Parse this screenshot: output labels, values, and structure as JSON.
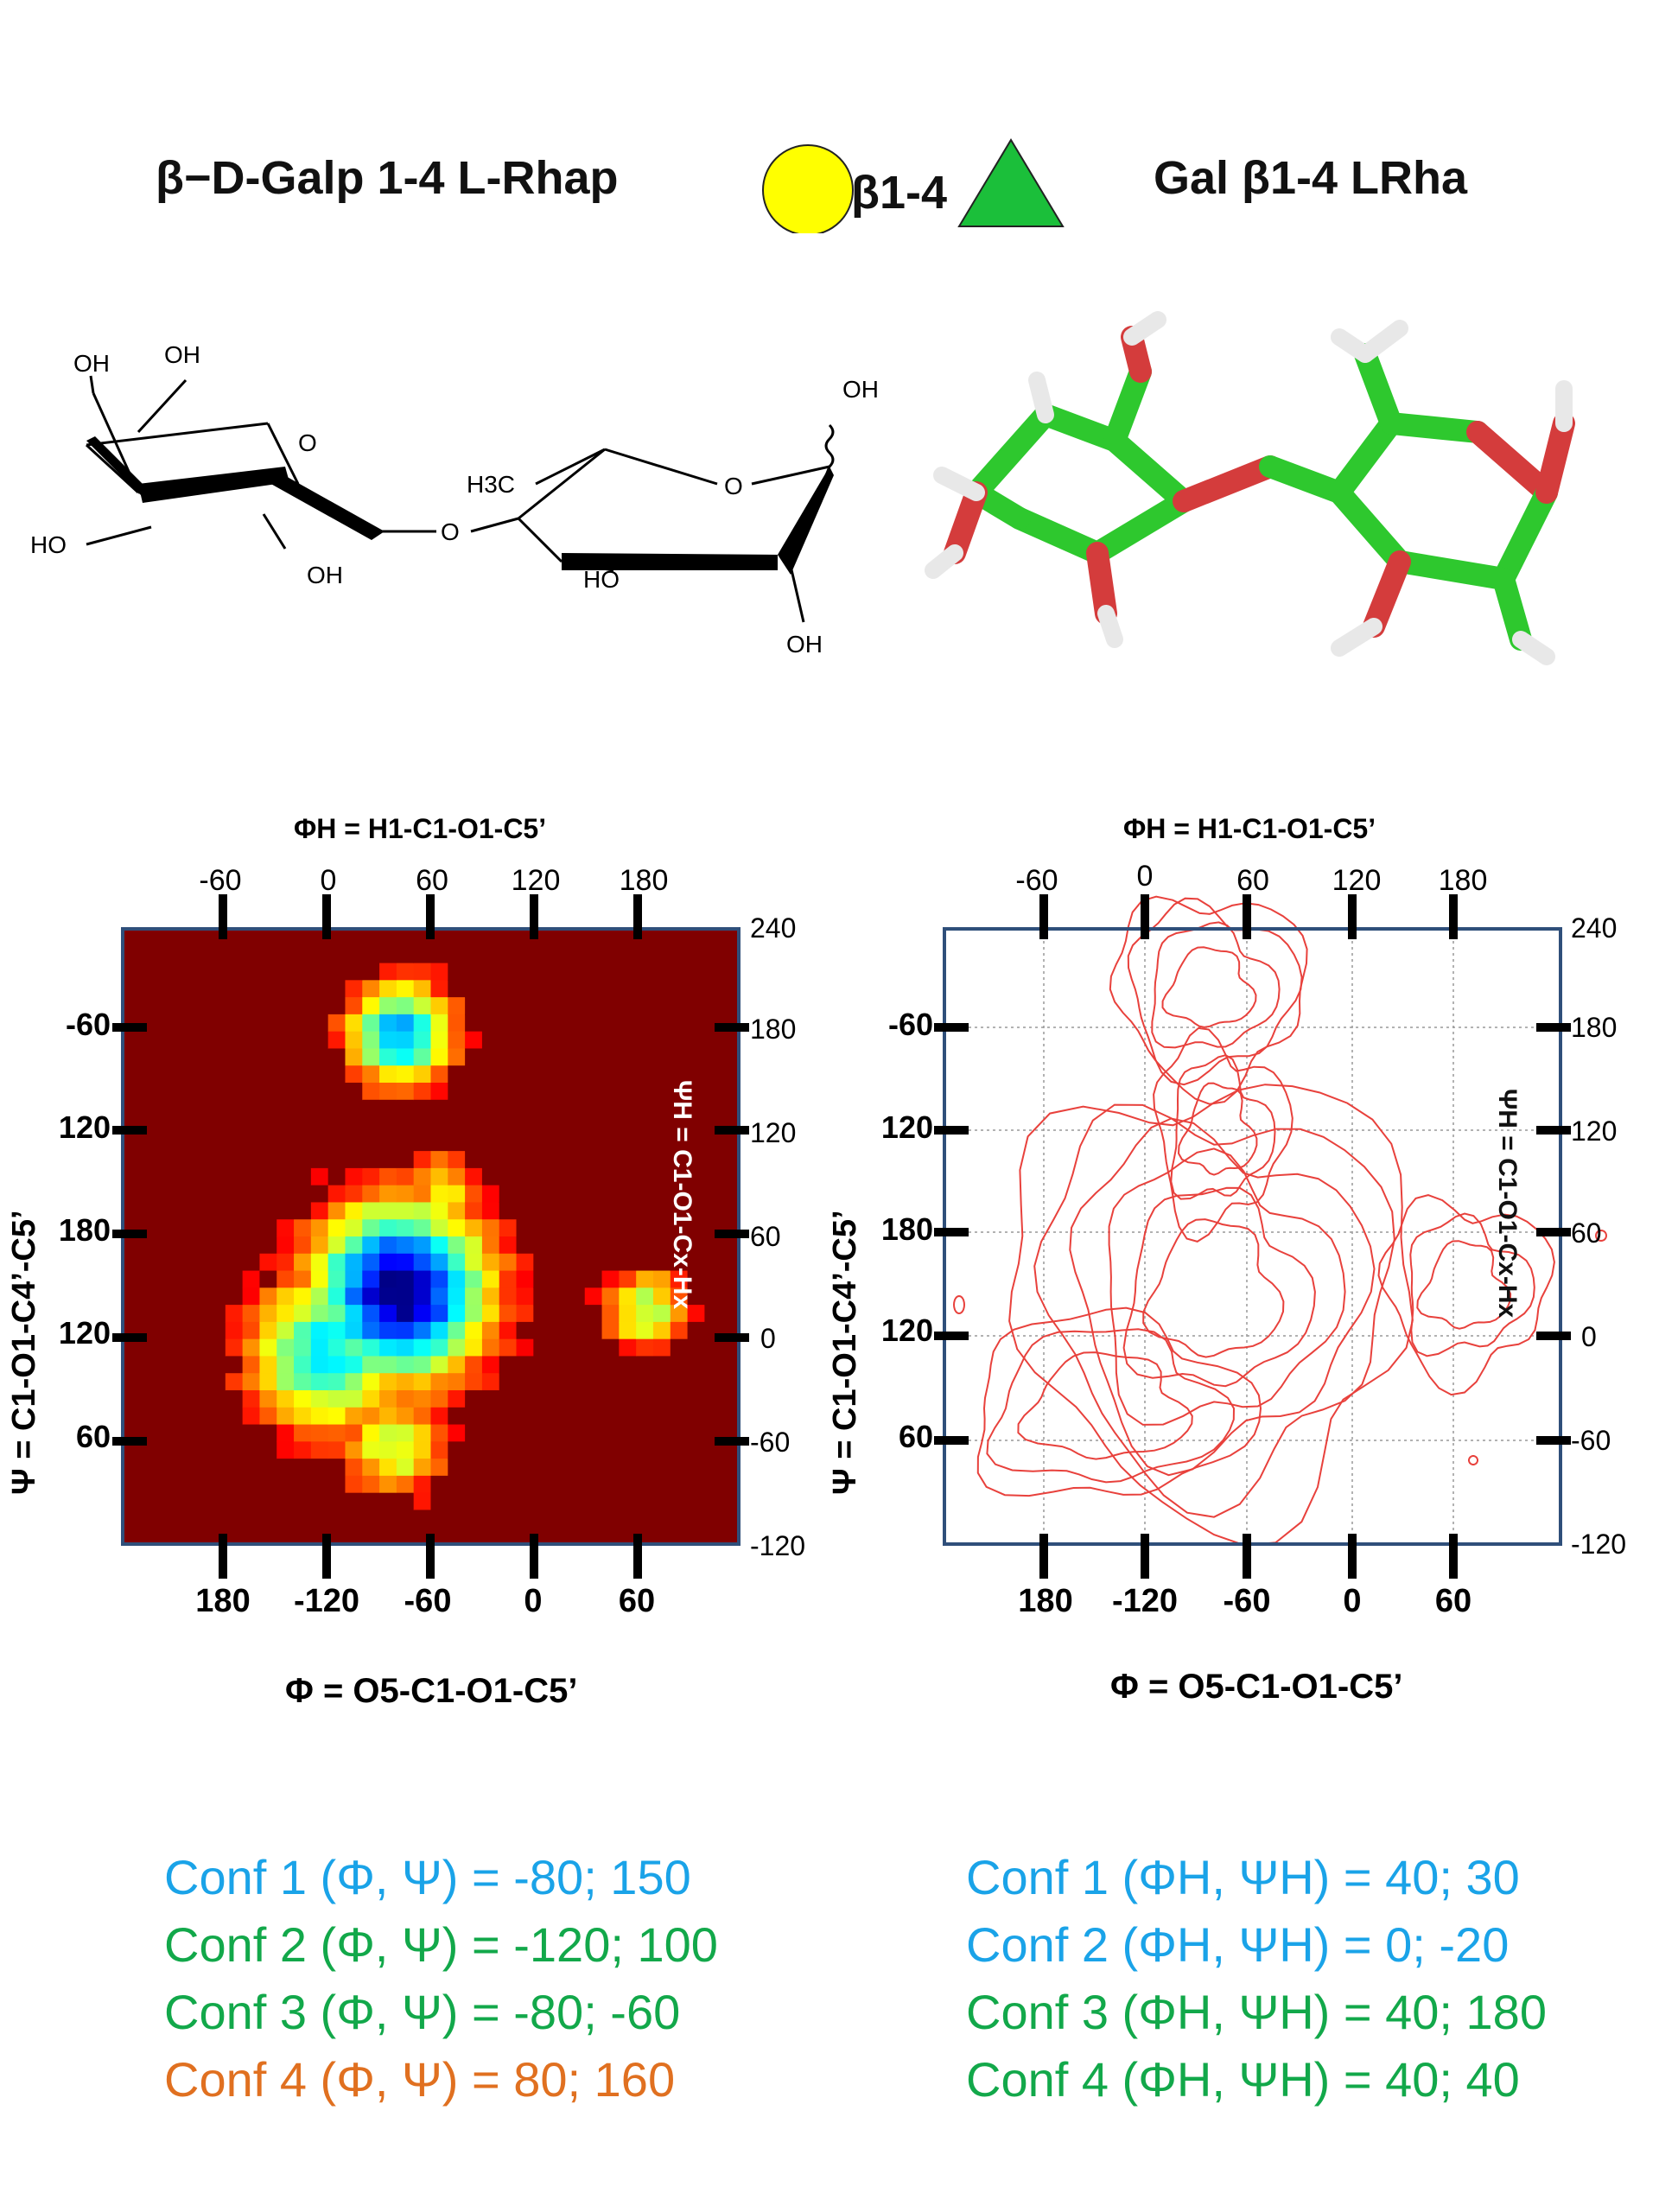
{
  "header": {
    "left_title": "β−D-Galp 1-4 L-Rhap",
    "linkage": "β1-4",
    "right_title": "Gal β1-4 LRha",
    "circle_color": "#ffff00",
    "triangle_color": "#1bbf3a"
  },
  "structure": {
    "labels": [
      "OH",
      "OH",
      "O",
      "HO",
      "OH",
      "O",
      "H3C",
      "O",
      "HO",
      "OH",
      "OH"
    ]
  },
  "plots": {
    "top_axis_title": "ΦH = H1-C1-O1-C5’",
    "bottom_axis_title": "Φ = O5-C1-O1-C5’",
    "left_axis_title": "Ψ = C1-O1-C4’-C5’",
    "right_axis_title": "ΨH = C1-O1-Cx-Hx",
    "top_ticks": [
      "-60",
      "0",
      "60",
      "120",
      "180"
    ],
    "bottom_ticks": [
      "180",
      "-120",
      "-60",
      "0",
      "60"
    ],
    "left_ticks": [
      "-60",
      "120",
      "180",
      "120",
      "60"
    ],
    "right_ticks": [
      "240",
      "180",
      "120",
      "60",
      "0",
      "-60",
      "-120"
    ]
  },
  "chart_data": [
    {
      "type": "heatmap",
      "x_axis_bottom": "Φ = O5-C1-O1-C5’",
      "x_axis_top": "ΦH = H1-C1-O1-C5’",
      "y_axis_left": "Ψ = C1-O1-C4’-C5’",
      "y_axis_right": "ΨH = C1-O1-Cx-Hx",
      "xlim_top": [
        -60,
        180
      ],
      "ylim_right": [
        -120,
        240
      ],
      "colormap": "jet",
      "minima": [
        {
          "phiH": 40,
          "psiH": 30
        },
        {
          "phiH": 40,
          "psiH": 180
        },
        {
          "phiH": 0,
          "psiH": -20
        },
        {
          "phiH": 40,
          "psiH": 40
        }
      ]
    },
    {
      "type": "contour",
      "x_axis_bottom": "Φ = O5-C1-O1-C5’",
      "x_axis_top": "ΦH = H1-C1-O1-C5’",
      "y_axis_left": "Ψ = C1-O1-C4’-C5’",
      "y_axis_right": "ΨH = C1-O1-Cx-Hx",
      "xlim_top": [
        -60,
        180
      ],
      "ylim_right": [
        -120,
        240
      ],
      "grid": true,
      "line_color": "#e8413c"
    }
  ],
  "confs": {
    "left": [
      {
        "label": "Conf 1 (Φ, Ψ) = -80; 150",
        "color": "#1aa3e8"
      },
      {
        "label": "Conf 2 (Φ, Ψ) =  -120; 100",
        "color": "#12a84a"
      },
      {
        "label": "Conf 3 (Φ, Ψ) =  -80; -60",
        "color": "#12a84a"
      },
      {
        "label": "Conf 4 (Φ, Ψ) =  80; 160",
        "color": "#e07020"
      }
    ],
    "right": [
      {
        "label": "Conf 1 (ΦH, ΨH) = 40;  30",
        "color": "#1aa3e8"
      },
      {
        "label": "Conf 2 (ΦH, ΨH) =  0;  -20",
        "color": "#1aa3e8"
      },
      {
        "label": "Conf 3 (ΦH, ΨH) = 40;  180",
        "color": "#12a84a"
      },
      {
        "label": "Conf 4 (ΦH, ΨH) = 40;  40",
        "color": "#12a84a"
      }
    ]
  }
}
